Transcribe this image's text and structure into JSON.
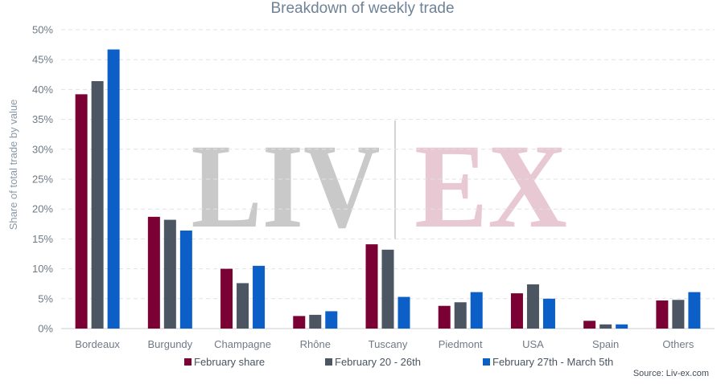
{
  "chart_data": {
    "type": "bar",
    "title": "Breakdown of weekly trade",
    "ylabel": "Share of total trade by value",
    "xlabel": "",
    "ylim": [
      0,
      50
    ],
    "ytick_values": [
      0,
      5,
      10,
      15,
      20,
      25,
      30,
      35,
      40,
      45,
      50
    ],
    "ytick_labels": [
      "0%",
      "5%",
      "10%",
      "15%",
      "20%",
      "25%",
      "30%",
      "35%",
      "40%",
      "45%",
      "50%"
    ],
    "grid": true,
    "legend_position": "bottom",
    "categories": [
      "Bordeaux",
      "Burgundy",
      "Champagne",
      "Rhône",
      "Tuscany",
      "Piedmont",
      "USA",
      "Spain",
      "Others"
    ],
    "series": [
      {
        "name": "February share",
        "color": "#7b0034",
        "values": [
          39.2,
          18.7,
          10.0,
          2.1,
          14.1,
          3.8,
          5.9,
          1.3,
          4.7
        ]
      },
      {
        "name": "February 20 - 26th",
        "color": "#4b5662",
        "values": [
          41.4,
          18.2,
          7.6,
          2.3,
          13.2,
          4.4,
          7.4,
          0.7,
          4.8
        ]
      },
      {
        "name": "February 27th - March 5th",
        "color": "#0b5fc6",
        "values": [
          46.7,
          16.4,
          10.5,
          2.9,
          5.3,
          6.1,
          5.0,
          0.7,
          6.1
        ]
      }
    ],
    "source": "Source: Liv-ex.com"
  },
  "watermark": {
    "left_text": "LIV",
    "right_text": "EX",
    "left_color": "#c9c9c9",
    "right_color": "#e8c8d2"
  }
}
